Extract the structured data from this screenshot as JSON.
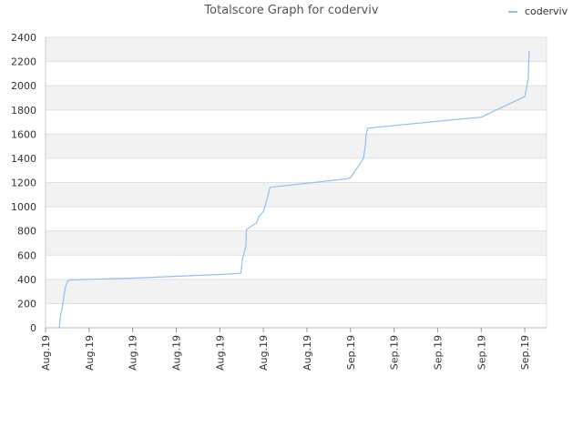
{
  "chart_data": {
    "type": "line",
    "title": "Totalscore Graph for coderviv",
    "xlabel": "",
    "ylabel": "",
    "ylim": [
      0,
      2400
    ],
    "yticks": [
      0,
      200,
      400,
      600,
      800,
      1000,
      1200,
      1400,
      1600,
      1800,
      2000,
      2200,
      2400
    ],
    "xtick_labels": [
      "Aug.19",
      "Aug.19",
      "Aug.19",
      "Aug.19",
      "Aug.19",
      "Aug.19",
      "Aug.19",
      "Sep.19",
      "Sep.19",
      "Sep.19",
      "Sep.19",
      "Sep.19"
    ],
    "xtick_positions": [
      0,
      10,
      20,
      30,
      40,
      50,
      60,
      70,
      80,
      90,
      100,
      110
    ],
    "xlim": [
      0,
      115
    ],
    "grid": true,
    "legend": "top-right",
    "series": [
      {
        "name": "coderviv",
        "color": "#90c0ef",
        "x": [
          3.0,
          3.2,
          3.4,
          3.6,
          3.8,
          4.2,
          4.4,
          4.6,
          4.8,
          5.0,
          5.2,
          6.0,
          10.0,
          20.0,
          30.0,
          40.0,
          44.8,
          45.0,
          45.2,
          45.6,
          46.0,
          46.1,
          48.5,
          49.0,
          50.0,
          50.5,
          51.0,
          51.5,
          69.0,
          70.0,
          73.0,
          73.4,
          73.6,
          74.0,
          94.0,
          100.0,
          110.0,
          110.5,
          110.8,
          111.0
        ],
        "y": [
          0,
          10,
          100,
          130,
          160,
          260,
          300,
          340,
          360,
          380,
          390,
          395,
          400,
          410,
          425,
          440,
          450,
          500,
          570,
          620,
          680,
          810,
          870,
          920,
          960,
          1020,
          1080,
          1160,
          1230,
          1240,
          1400,
          1500,
          1600,
          1650,
          1720,
          1740,
          1910,
          2000,
          2060,
          2290
        ]
      }
    ]
  }
}
